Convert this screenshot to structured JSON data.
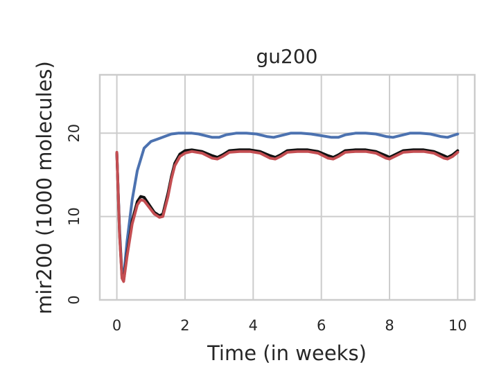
{
  "chart_data": {
    "type": "line",
    "title": "gu200",
    "xlabel": "Time (in weeks)",
    "ylabel": "mir200 (1000 molecules)",
    "xlim": [
      -0.5,
      10.5
    ],
    "ylim": [
      0,
      27
    ],
    "xticks": [
      0,
      2,
      4,
      6,
      8,
      10
    ],
    "xtick_labels": [
      "0",
      "2",
      "4",
      "6",
      "8",
      "10"
    ],
    "yticks": [
      0,
      10,
      20
    ],
    "ytick_labels": [
      "0",
      "10",
      "20"
    ],
    "grid": true,
    "legend": "none",
    "colors": {
      "blue": "#4c72b0",
      "black": "#111111",
      "red": "#c44e52",
      "grid": "#cccccc",
      "frame": "#cccccc"
    },
    "series": [
      {
        "color": "blue",
        "x": [
          0,
          0.08,
          0.15,
          0.2,
          0.3,
          0.45,
          0.6,
          0.8,
          1.0,
          1.2,
          1.4,
          1.6,
          1.8,
          2.0,
          2.2,
          2.4,
          2.6,
          2.8,
          3.0,
          3.2,
          3.5,
          3.8,
          4.1,
          4.4,
          4.6,
          4.8,
          5.1,
          5.4,
          5.7,
          6.0,
          6.3,
          6.5,
          6.7,
          7.0,
          7.3,
          7.6,
          7.9,
          8.1,
          8.3,
          8.6,
          8.9,
          9.2,
          9.5,
          9.7,
          9.85,
          10.0
        ],
        "y": [
          17.5,
          8.5,
          3.0,
          2.8,
          7.0,
          12.0,
          15.5,
          18.2,
          19.0,
          19.3,
          19.6,
          19.9,
          20.0,
          20.0,
          20.0,
          19.9,
          19.7,
          19.5,
          19.5,
          19.8,
          20.0,
          20.0,
          19.9,
          19.6,
          19.5,
          19.7,
          20.0,
          20.0,
          19.9,
          19.7,
          19.5,
          19.5,
          19.8,
          20.0,
          20.0,
          19.9,
          19.6,
          19.5,
          19.7,
          20.0,
          20.0,
          19.9,
          19.6,
          19.5,
          19.7,
          19.9
        ]
      },
      {
        "color": "black",
        "x": [
          0,
          0.08,
          0.15,
          0.2,
          0.3,
          0.45,
          0.6,
          0.7,
          0.8,
          0.95,
          1.1,
          1.25,
          1.35,
          1.5,
          1.6,
          1.7,
          1.85,
          2.0,
          2.2,
          2.5,
          2.8,
          2.95,
          3.1,
          3.3,
          3.6,
          3.9,
          4.2,
          4.5,
          4.65,
          4.8,
          5.0,
          5.3,
          5.6,
          5.9,
          6.2,
          6.35,
          6.5,
          6.7,
          7.0,
          7.3,
          7.6,
          7.9,
          8.0,
          8.15,
          8.4,
          8.7,
          9.0,
          9.3,
          9.6,
          9.7,
          9.85,
          10.0
        ],
        "y": [
          17.6,
          8.0,
          2.8,
          2.3,
          5.5,
          9.5,
          11.8,
          12.4,
          12.3,
          11.4,
          10.5,
          10.1,
          10.3,
          12.8,
          14.8,
          16.4,
          17.5,
          17.9,
          18.0,
          17.8,
          17.3,
          17.1,
          17.4,
          17.9,
          18.0,
          18.0,
          17.8,
          17.3,
          17.1,
          17.4,
          17.9,
          18.0,
          18.0,
          17.8,
          17.3,
          17.1,
          17.4,
          17.9,
          18.0,
          18.0,
          17.8,
          17.3,
          17.1,
          17.4,
          17.9,
          18.0,
          18.0,
          17.8,
          17.3,
          17.1,
          17.4,
          17.9
        ]
      },
      {
        "color": "red",
        "x": [
          0,
          0.08,
          0.15,
          0.2,
          0.3,
          0.45,
          0.6,
          0.7,
          0.8,
          0.95,
          1.1,
          1.25,
          1.35,
          1.5,
          1.6,
          1.7,
          1.85,
          2.0,
          2.2,
          2.5,
          2.8,
          2.95,
          3.1,
          3.3,
          3.6,
          3.9,
          4.2,
          4.5,
          4.65,
          4.8,
          5.0,
          5.3,
          5.6,
          5.9,
          6.2,
          6.35,
          6.5,
          6.7,
          7.0,
          7.3,
          7.6,
          7.9,
          8.0,
          8.15,
          8.4,
          8.7,
          9.0,
          9.3,
          9.6,
          9.7,
          9.85,
          10.0
        ],
        "y": [
          17.7,
          7.8,
          2.6,
          2.2,
          5.2,
          9.1,
          11.4,
          12.0,
          11.9,
          11.1,
          10.3,
          9.9,
          10.0,
          12.4,
          14.5,
          16.1,
          17.2,
          17.6,
          17.8,
          17.6,
          17.0,
          16.9,
          17.2,
          17.7,
          17.8,
          17.8,
          17.6,
          17.0,
          16.9,
          17.2,
          17.7,
          17.8,
          17.8,
          17.6,
          17.0,
          16.9,
          17.2,
          17.7,
          17.8,
          17.8,
          17.6,
          17.0,
          16.9,
          17.2,
          17.7,
          17.8,
          17.8,
          17.6,
          17.0,
          16.9,
          17.2,
          17.7
        ]
      }
    ]
  }
}
